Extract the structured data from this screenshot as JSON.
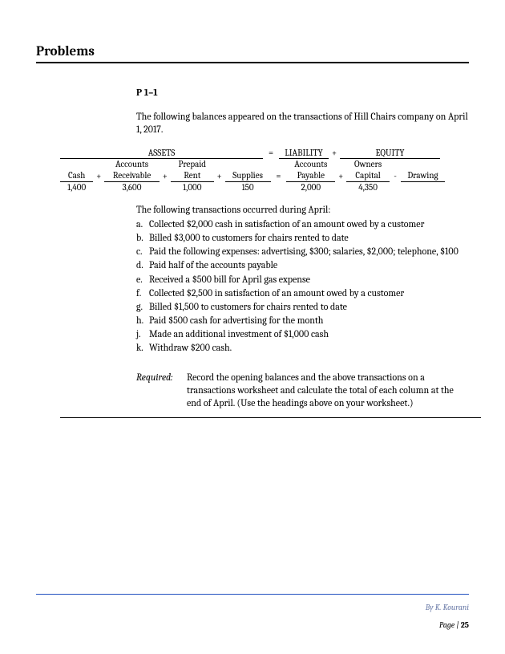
{
  "section_title": "Problems",
  "problem_number": "P 1–1",
  "intro": "The following balances appeared on the transactions of Hill Chairs company on April 1, 2017.",
  "equation": {
    "section_assets": "ASSETS",
    "section_liability": "LIABILITY",
    "section_equity": "EQUITY",
    "eq_sign": "=",
    "plus_sign": "+",
    "minus_sign": "-",
    "cols": {
      "cash": {
        "label": "Cash",
        "value": "1,400"
      },
      "ar": {
        "label_l1": "Accounts",
        "label_l2": "Receivable",
        "value": "3,600"
      },
      "rent": {
        "label_l1": "Prepaid",
        "label_l2": "Rent",
        "value": "1,000"
      },
      "supplies": {
        "label": "Supplies",
        "value": "150"
      },
      "ap": {
        "label_l1": "Accounts",
        "label_l2": "Payable",
        "value": "2,000"
      },
      "oc": {
        "label_l1": "Owners",
        "label_l2": "Capital",
        "value": "4,350"
      },
      "draw": {
        "label": "Drawing",
        "value": ""
      }
    }
  },
  "tx_intro": "The following transactions occurred during April:",
  "transactions": [
    {
      "m": "a.",
      "t": "Collected $2,000 cash in satisfaction of an amount owed by a customer"
    },
    {
      "m": "b.",
      "t": "Billed $3,000 to customers for chairs rented to date"
    },
    {
      "m": "c.",
      "t": "Paid the following expenses: advertising, $300; salaries, $2,000; telephone, $100"
    },
    {
      "m": "d.",
      "t": "Paid half of the accounts payable"
    },
    {
      "m": "e.",
      "t": "Received a $500 bill for April gas expense"
    },
    {
      "m": "f.",
      "t": "Collected $2,500 in satisfaction of an amount owed by a customer"
    },
    {
      "m": "g.",
      "t": "Billed $1,500 to customers for chairs rented to date"
    },
    {
      "m": "h.",
      "t": "Paid $500 cash for advertising for the month"
    },
    {
      "m": "j.",
      "t": "Made an additional investment of $1,000 cash"
    },
    {
      "m": "k.",
      "t": "Withdraw $200 cash."
    }
  ],
  "required_label": "Required:",
  "required_text": "Record the opening balances and the above transactions on a transactions worksheet and calculate the total of each column at the end of April. (Use the headings above on your worksheet.)",
  "footer": {
    "byline": "By K. Kourani",
    "page_label": "Page | ",
    "page_num": "25"
  }
}
